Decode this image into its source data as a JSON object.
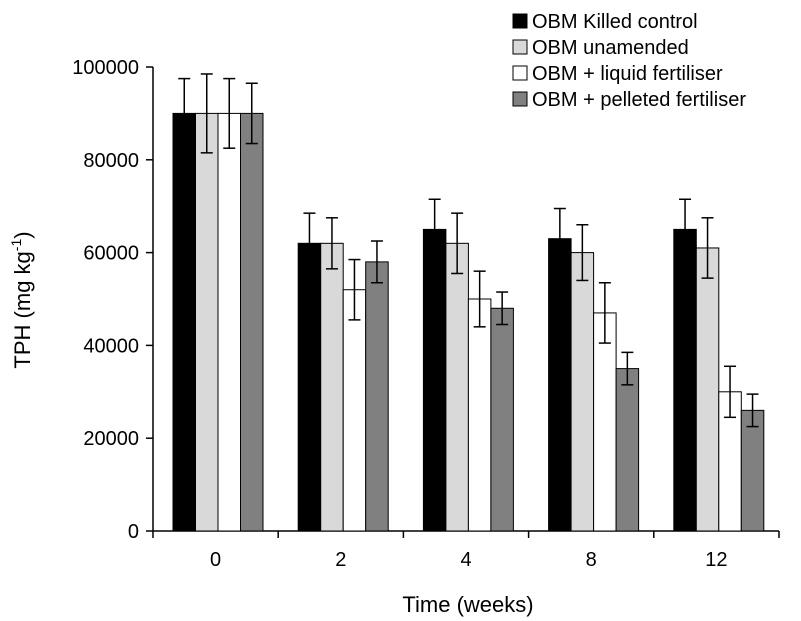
{
  "chart_data": {
    "type": "bar",
    "xlabel": "Time (weeks)",
    "ylabel": {
      "main": "TPH (mg kg",
      "sup": "-1",
      "close": ")"
    },
    "categories": [
      "0",
      "2",
      "4",
      "8",
      "12"
    ],
    "ylim": [
      0,
      100000
    ],
    "yticks": [
      0,
      20000,
      40000,
      60000,
      80000,
      100000
    ],
    "grid": false,
    "legend_position": "top-right",
    "series": [
      {
        "name": "OBM Killed control",
        "color": "#000000",
        "values": [
          90000,
          62000,
          65000,
          63000,
          65000
        ],
        "errors": [
          7500,
          6500,
          6500,
          6500,
          6500
        ]
      },
      {
        "name": "OBM unamended",
        "color": "#d9d9d9",
        "values": [
          90000,
          62000,
          62000,
          60000,
          61000
        ],
        "errors": [
          8500,
          5500,
          6500,
          6000,
          6500
        ]
      },
      {
        "name": "OBM + liquid fertiliser",
        "color": "#ffffff",
        "values": [
          90000,
          52000,
          50000,
          47000,
          30000
        ],
        "errors": [
          7500,
          6500,
          6000,
          6500,
          5500
        ]
      },
      {
        "name": "OBM + pelleted fertiliser",
        "color": "#808080",
        "values": [
          90000,
          58000,
          48000,
          35000,
          26000
        ],
        "errors": [
          6500,
          4500,
          3500,
          3500,
          3500
        ]
      }
    ]
  }
}
